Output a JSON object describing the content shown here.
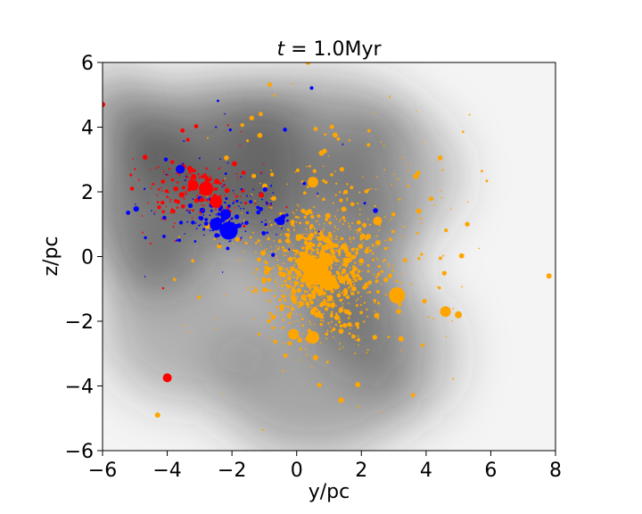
{
  "chart_data": {
    "type": "scatter",
    "title_var": "t",
    "title_eq": " = 1.0Myr",
    "xlabel": "y/pc",
    "ylabel": "z/pc",
    "xlim": [
      -6,
      8
    ],
    "ylim": [
      -6,
      6
    ],
    "xticks": [
      -6,
      -4,
      -2,
      0,
      2,
      4,
      6,
      8
    ],
    "yticks": [
      -6,
      -4,
      -2,
      0,
      2,
      4,
      6
    ],
    "xtick_labels": [
      "−6",
      "−4",
      "−2",
      "0",
      "2",
      "4",
      "6",
      "8"
    ],
    "ytick_labels": [
      "−6",
      "−4",
      "−2",
      "0",
      "2",
      "4",
      "6"
    ],
    "grid": false,
    "background": "grayscale gas density map",
    "colors": {
      "red": "#ff0000",
      "blue": "#0000ff",
      "orange": "#ffa500"
    },
    "clusters": [
      {
        "color": "orange",
        "center": [
          0.6,
          -0.5
        ],
        "spread": [
          0.9,
          0.9
        ],
        "count": 900
      },
      {
        "color": "orange",
        "center": [
          1.5,
          0.5
        ],
        "spread": [
          2.0,
          2.0
        ],
        "count": 300
      },
      {
        "color": "blue",
        "center": [
          -2.3,
          1.2
        ],
        "spread": [
          0.6,
          0.5
        ],
        "count": 120
      },
      {
        "color": "blue",
        "center": [
          -1.5,
          1.8
        ],
        "spread": [
          2.0,
          1.2
        ],
        "count": 60
      },
      {
        "color": "red",
        "center": [
          -3.0,
          2.0
        ],
        "spread": [
          0.8,
          0.5
        ],
        "count": 140
      },
      {
        "color": "red",
        "center": [
          -4.0,
          2.2
        ],
        "spread": [
          1.5,
          1.2
        ],
        "count": 50
      }
    ],
    "big_points": [
      {
        "x": 0.6,
        "y": -0.5,
        "r": 14,
        "color": "orange"
      },
      {
        "x": 0.3,
        "y": -0.2,
        "r": 10,
        "color": "orange"
      },
      {
        "x": 1.0,
        "y": -0.8,
        "r": 9,
        "color": "orange"
      },
      {
        "x": 0.9,
        "y": -0.1,
        "r": 8,
        "color": "orange"
      },
      {
        "x": 3.1,
        "y": -1.2,
        "r": 9,
        "color": "orange"
      },
      {
        "x": 4.6,
        "y": -1.7,
        "r": 6,
        "color": "orange"
      },
      {
        "x": 5.0,
        "y": -1.8,
        "r": 4,
        "color": "orange"
      },
      {
        "x": 0.5,
        "y": -2.5,
        "r": 7,
        "color": "orange"
      },
      {
        "x": -0.1,
        "y": -2.4,
        "r": 6,
        "color": "orange"
      },
      {
        "x": 0.5,
        "y": 2.3,
        "r": 6,
        "color": "orange"
      },
      {
        "x": 2.5,
        "y": 1.1,
        "r": 5,
        "color": "orange"
      },
      {
        "x": 7.8,
        "y": -0.6,
        "r": 3,
        "color": "orange"
      },
      {
        "x": -4.3,
        "y": -4.9,
        "r": 3,
        "color": "orange"
      },
      {
        "x": -2.1,
        "y": 0.8,
        "r": 10,
        "color": "blue"
      },
      {
        "x": -2.5,
        "y": 1.0,
        "r": 7,
        "color": "blue"
      },
      {
        "x": -2.2,
        "y": 1.3,
        "r": 6,
        "color": "blue"
      },
      {
        "x": -0.5,
        "y": 1.1,
        "r": 5,
        "color": "blue"
      },
      {
        "x": -3.6,
        "y": 2.7,
        "r": 5,
        "color": "blue"
      },
      {
        "x": -2.8,
        "y": 2.1,
        "r": 8,
        "color": "red"
      },
      {
        "x": -2.5,
        "y": 1.7,
        "r": 7,
        "color": "red"
      },
      {
        "x": -3.2,
        "y": 2.2,
        "r": 6,
        "color": "red"
      },
      {
        "x": -4.0,
        "y": -3.75,
        "r": 5,
        "color": "red"
      },
      {
        "x": -6.0,
        "y": 4.7,
        "r": 3,
        "color": "red"
      }
    ]
  }
}
